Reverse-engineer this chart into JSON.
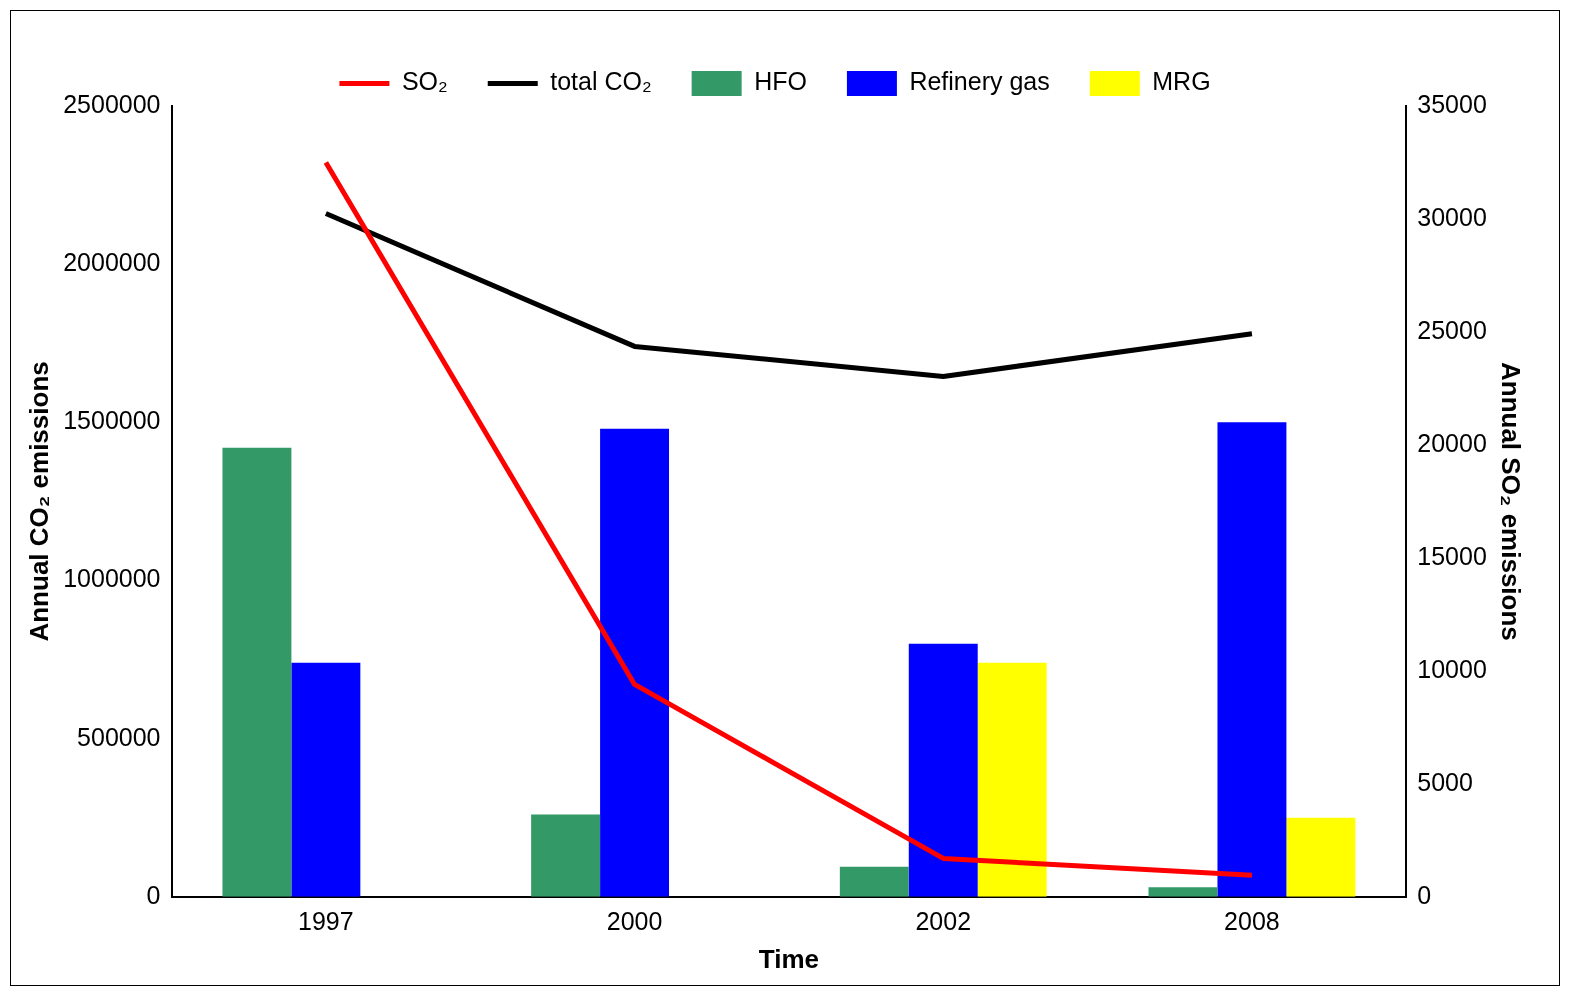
{
  "chart_data": {
    "type": "bar",
    "xlabel": "Time",
    "ylabel": "Annual CO₂ emissions",
    "y2label": "Annual SO₂ emissions",
    "categories": [
      "1997",
      "2000",
      "2002",
      "2008"
    ],
    "series": [
      {
        "name": "HFO",
        "color": "#339966",
        "values": [
          1420000,
          260000,
          95000,
          30000
        ]
      },
      {
        "name": "Refinery gas",
        "color": "#0000ff",
        "values": [
          740000,
          1480000,
          800000,
          1500000
        ]
      },
      {
        "name": "MRG",
        "color": "#ffff00",
        "values": [
          null,
          null,
          740000,
          250000
        ]
      },
      {
        "name": "SO₂",
        "type": "line",
        "axis": "y2",
        "color": "#ff0000",
        "values": [
          32500,
          9400,
          1700,
          950
        ]
      },
      {
        "name": "total CO₂",
        "type": "line",
        "color": "#000000",
        "values": [
          2160000,
          1740000,
          1645000,
          1780000
        ]
      }
    ],
    "ylim": [
      0,
      2500000
    ],
    "yticks": [
      0,
      500000,
      1000000,
      1500000,
      2000000,
      2500000
    ],
    "y2lim": [
      0,
      35000
    ],
    "y2ticks": [
      0,
      5000,
      10000,
      15000,
      20000,
      25000,
      30000,
      35000
    ],
    "grid": false,
    "legend": "top",
    "marker": "none",
    "line_style": "solid"
  }
}
